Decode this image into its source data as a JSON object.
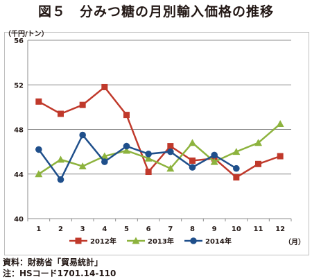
{
  "chart_data": {
    "type": "line",
    "title": "図５　分みつ糖の月別輸入価格の推移",
    "ylabel": "（千円/トン）",
    "xlabel": "（月）",
    "categories": [
      "1",
      "2",
      "3",
      "4",
      "5",
      "6",
      "7",
      "8",
      "9",
      "10",
      "11",
      "12"
    ],
    "yticks": [
      "40",
      "44",
      "48",
      "52",
      "56"
    ],
    "ylim": [
      40,
      56
    ],
    "grid": true,
    "legend_position": "bottom",
    "series": [
      {
        "name": "2012年",
        "color": "#c0392b",
        "marker": "square",
        "values": [
          50.5,
          49.4,
          50.2,
          51.8,
          49.3,
          44.2,
          46.5,
          45.2,
          45.4,
          43.7,
          44.9,
          45.6
        ]
      },
      {
        "name": "2013年",
        "color": "#8db33e",
        "marker": "triangle",
        "values": [
          44.0,
          45.3,
          44.7,
          45.6,
          46.1,
          45.4,
          44.5,
          46.8,
          45.1,
          46.0,
          46.8,
          48.5
        ]
      },
      {
        "name": "2014年",
        "color": "#1f4f8b",
        "marker": "circle",
        "values": [
          46.2,
          43.5,
          47.5,
          45.1,
          46.5,
          45.8,
          46.0,
          44.6,
          45.7,
          44.5,
          null,
          null
        ]
      }
    ]
  },
  "source": "資料：財務省「貿易統計」",
  "note": "注：HSコード1701.14-110"
}
